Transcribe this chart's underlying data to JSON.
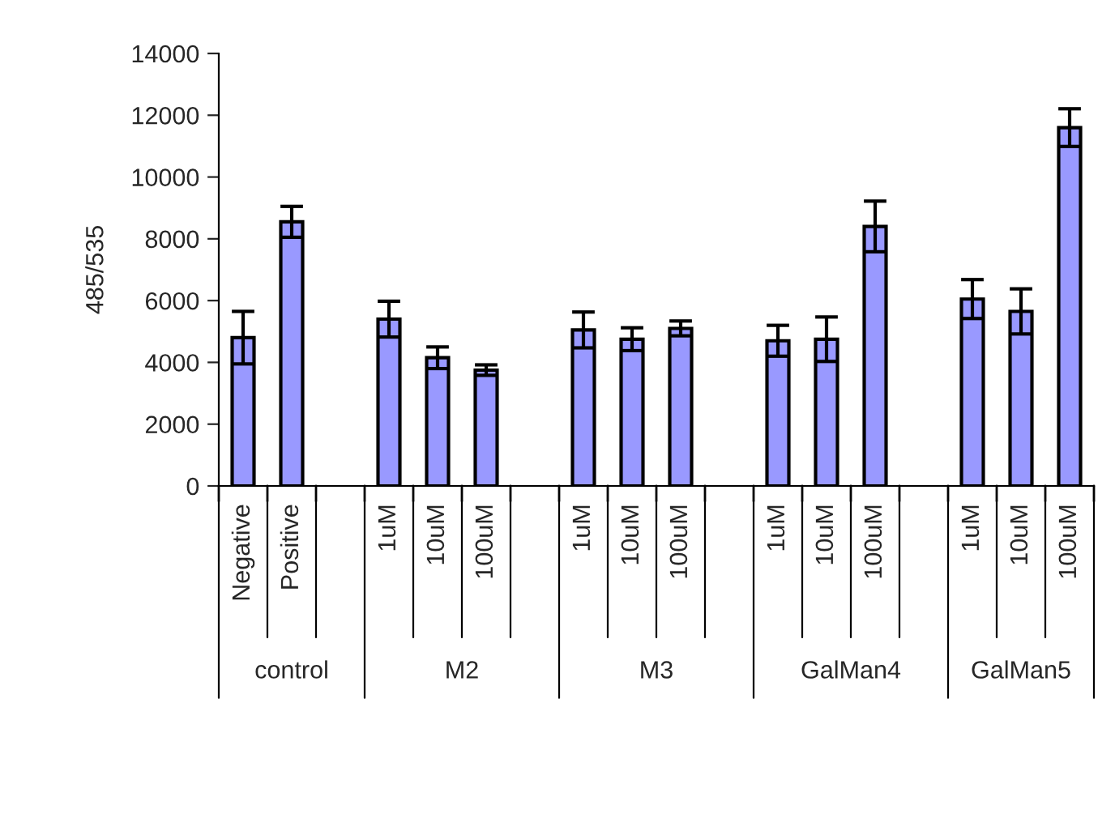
{
  "chart_data": {
    "type": "bar",
    "ylabel": "485/535",
    "categories": [
      "Negative",
      "Positive",
      null,
      "1uM",
      "10uM",
      "100uM",
      null,
      "1uM",
      "10uM",
      "100uM",
      null,
      "1uM",
      "10uM",
      "100uM",
      null,
      "1uM",
      "10uM",
      "100uM"
    ],
    "series": [
      {
        "color": "#9999ff",
        "values": [
          4800,
          8550,
          null,
          5400,
          4150,
          3750,
          null,
          5050,
          4750,
          5100,
          null,
          4700,
          4750,
          8400,
          null,
          6050,
          5650,
          11600
        ],
        "errors": [
          850,
          500,
          null,
          580,
          350,
          170,
          null,
          580,
          370,
          240,
          null,
          500,
          720,
          820,
          null,
          630,
          730,
          610
        ]
      }
    ],
    "annotations": [
      "control",
      "M2",
      "M3",
      "GalMan4",
      "GalMan5"
    ],
    "ylim": [
      0,
      14000
    ],
    "yticks": [
      0,
      2000,
      4000,
      6000,
      8000,
      10000,
      12000,
      14000
    ],
    "grid": false,
    "legend": false
  }
}
